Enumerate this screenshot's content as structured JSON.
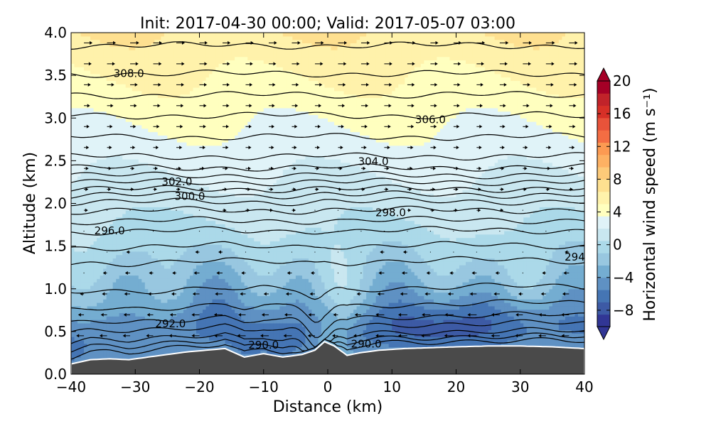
{
  "chart_data": {
    "type": "heatmap",
    "title": "Init: 2017-04-30 00:00; Valid: 2017-05-07 03:00",
    "xlabel": "Distance (km)",
    "ylabel": "Altitude (km)",
    "xlim": [
      -40,
      40
    ],
    "ylim": [
      0,
      4
    ],
    "x_ticks": [
      -40,
      -30,
      -20,
      -10,
      0,
      10,
      20,
      30,
      40
    ],
    "y_ticks": [
      0.0,
      0.5,
      1.0,
      1.5,
      2.0,
      2.5,
      3.0,
      3.5,
      4.0
    ],
    "x_tick_labels": [
      "−40",
      "−30",
      "−20",
      "−10",
      "0",
      "10",
      "20",
      "30",
      "40"
    ],
    "y_tick_labels": [
      "0.0",
      "0.5",
      "1.0",
      "1.5",
      "2.0",
      "2.5",
      "3.0",
      "3.5",
      "4.0"
    ],
    "colorbar": {
      "label": "Horizontal wind speed (m s⁻¹)",
      "range": [
        -10,
        20
      ],
      "ticks": [
        -8,
        -4,
        0,
        4,
        8,
        12,
        16,
        20
      ],
      "tick_labels": [
        "−8",
        "−4",
        "0",
        "4",
        "8",
        "12",
        "16",
        "20"
      ],
      "colors": [
        "#313695",
        "#3d5aa5",
        "#4575b4",
        "#5f91c3",
        "#74add1",
        "#98c7e0",
        "#abd9e9",
        "#c9e7f0",
        "#e0f3f8",
        "#ffffbf",
        "#fff2ab",
        "#fee090",
        "#fdca79",
        "#fdb163",
        "#fc9a52",
        "#f46d43",
        "#e8533a",
        "#d73027",
        "#c1232a",
        "#a50026"
      ]
    },
    "terrain": {
      "x": [
        -40,
        -37,
        -34,
        -31,
        -28,
        -25,
        -22,
        -19,
        -16,
        -13,
        -10,
        -7,
        -4,
        -2,
        -0.5,
        1,
        3,
        5,
        8,
        12,
        16,
        20,
        25,
        30,
        35,
        40
      ],
      "height": [
        0.12,
        0.17,
        0.18,
        0.17,
        0.2,
        0.23,
        0.26,
        0.28,
        0.3,
        0.2,
        0.24,
        0.2,
        0.23,
        0.28,
        0.38,
        0.33,
        0.22,
        0.25,
        0.28,
        0.3,
        0.31,
        0.32,
        0.33,
        0.33,
        0.32,
        0.3
      ]
    },
    "theta_contours": [
      {
        "theta": 290.0,
        "label": "290.0",
        "label_at": [
          [
            -10,
            0.35
          ],
          [
            6,
            0.36
          ]
        ]
      },
      {
        "theta": 292.0,
        "label": "292.0",
        "label_at": [
          [
            -24.5,
            0.6
          ]
        ]
      },
      {
        "theta": 294.0,
        "label": "294",
        "label_at": [
          [
            38.5,
            1.38
          ]
        ]
      },
      {
        "theta": 296.0,
        "label": "296.0",
        "label_at": [
          [
            -34,
            1.69
          ]
        ]
      },
      {
        "theta": 298.0,
        "label": "298.0",
        "label_at": [
          [
            9.8,
            1.9
          ]
        ]
      },
      {
        "theta": 300.0,
        "label": "300.0",
        "label_at": [
          [
            -21.5,
            2.09
          ]
        ]
      },
      {
        "theta": 302.0,
        "label": "302.0",
        "label_at": [
          [
            -23.5,
            2.26
          ]
        ]
      },
      {
        "theta": 304.0,
        "label": "304.0",
        "label_at": [
          [
            7.1,
            2.5
          ]
        ]
      },
      {
        "theta": 306.0,
        "label": "306.0",
        "label_at": [
          [
            16,
            2.99
          ]
        ]
      },
      {
        "theta": 308.0,
        "label": "308.0",
        "label_at": [
          [
            -31,
            3.53
          ]
        ]
      }
    ],
    "contour_levels_y": [
      3.85,
      3.52,
      3.27,
      3.03,
      2.78,
      2.55,
      2.42,
      2.33,
      2.25,
      2.17,
      2.1,
      2.02,
      1.92,
      1.8,
      1.68,
      1.5,
      1.32,
      1.0,
      0.8,
      0.65,
      0.55,
      0.45,
      0.38,
      0.32
    ]
  }
}
